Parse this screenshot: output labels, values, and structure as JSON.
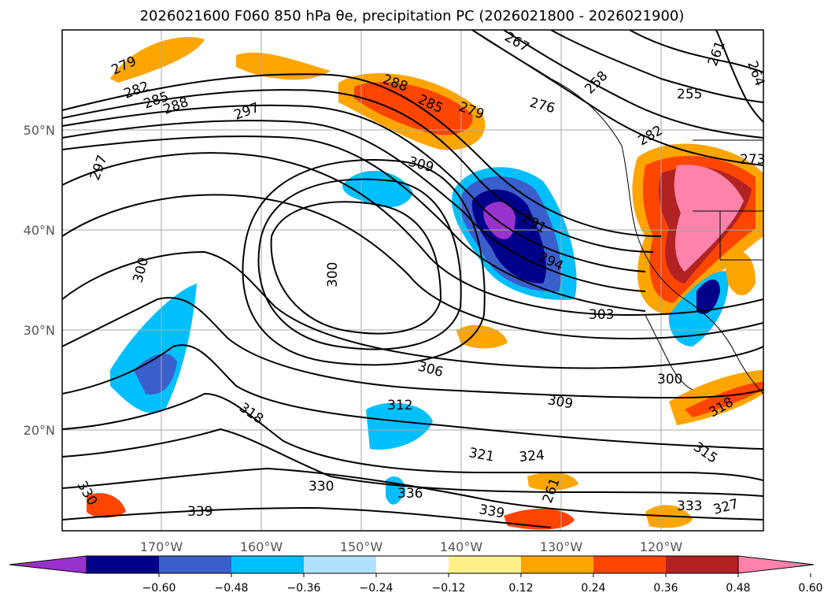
{
  "title": "2026021600 F060 850 hPa θe, precipitation PC (2026021800 - 2026021900)",
  "map": {
    "lon_range": [
      -180,
      -110
    ],
    "lat_range": [
      10,
      60
    ],
    "lon_ticks": [
      "170°W",
      "160°W",
      "150°W",
      "140°W",
      "130°W",
      "120°W"
    ],
    "lat_ticks": [
      "50°N",
      "40°N",
      "30°N",
      "20°N"
    ],
    "contour_labels": [
      "279",
      "282",
      "285",
      "288",
      "297",
      "297",
      "288",
      "285",
      "279",
      "276",
      "258",
      "261",
      "264",
      "255",
      "282",
      "309",
      "291",
      "294",
      "300",
      "300",
      "303",
      "306",
      "309",
      "312",
      "318",
      "318",
      "315",
      "321",
      "324",
      "330",
      "330",
      "336",
      "339",
      "339",
      "333",
      "327",
      "300",
      "267",
      "273",
      "261"
    ]
  },
  "colorbar": {
    "colors": [
      "#9932cc",
      "#00008b",
      "#3a5fcd",
      "#00bfff",
      "#b0e2ff",
      "#ffffff",
      "#fff08a",
      "#ffa500",
      "#ff4500",
      "#b22222",
      "#ff82ab"
    ],
    "tick_labels": [
      "−0.60",
      "−0.48",
      "−0.36",
      "−0.24",
      "−0.12",
      "0.12",
      "0.24",
      "0.36",
      "0.48",
      "0.60"
    ]
  }
}
